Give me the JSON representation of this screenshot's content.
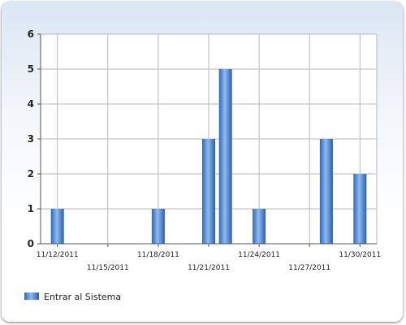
{
  "chart_data": {
    "type": "bar",
    "x": [
      "11/12/2011",
      "11/13/2011",
      "11/14/2011",
      "11/15/2011",
      "11/16/2011",
      "11/17/2011",
      "11/18/2011",
      "11/19/2011",
      "11/20/2011",
      "11/21/2011",
      "11/22/2011",
      "11/23/2011",
      "11/24/2011",
      "11/25/2011",
      "11/26/2011",
      "11/27/2011",
      "11/28/2011",
      "11/29/2011",
      "11/30/2011"
    ],
    "x_tick_labels": [
      "11/12/2011",
      "11/15/2011",
      "11/18/2011",
      "11/21/2011",
      "11/24/2011",
      "11/27/2011",
      "11/30/2011"
    ],
    "series": [
      {
        "name": "Entrar al Sistema",
        "values": [
          1,
          0,
          0,
          0,
          0,
          0,
          1,
          0,
          0,
          3,
          5,
          0,
          1,
          0,
          0,
          0,
          3,
          0,
          2
        ],
        "color": "#4f8fe0"
      }
    ],
    "title": "",
    "xlabel": "",
    "ylabel": "",
    "ylim": [
      0,
      6
    ],
    "y_ticks": [
      "0",
      "1",
      "2",
      "3",
      "4",
      "5",
      "6"
    ],
    "grid": true,
    "legend_position": "bottom-left"
  }
}
